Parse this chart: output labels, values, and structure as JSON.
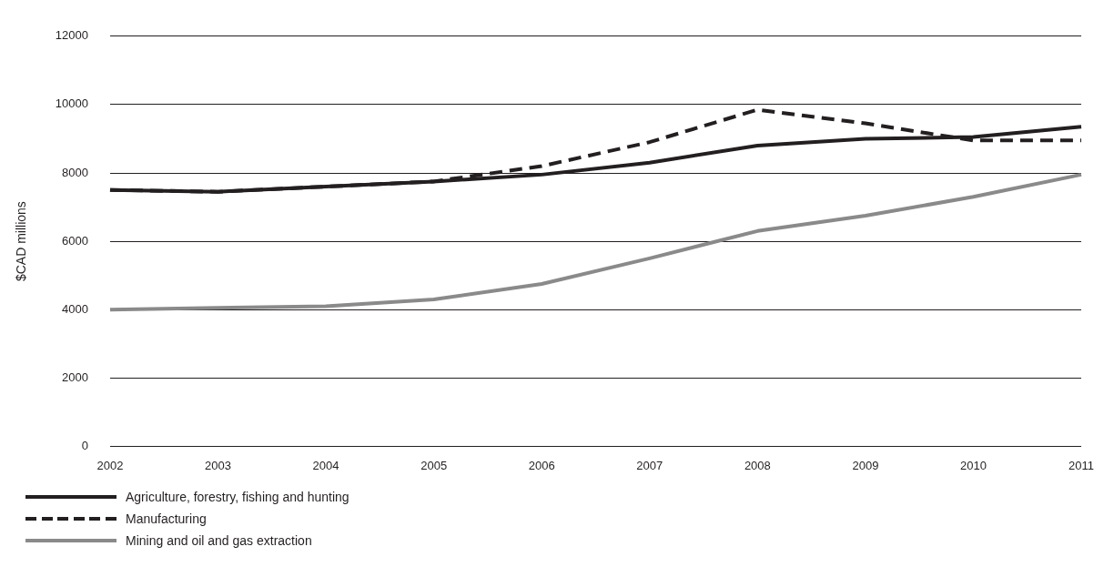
{
  "chart_data": {
    "type": "line",
    "ylabel": "$CAD millions",
    "categories": [
      "2002",
      "2003",
      "2004",
      "2005",
      "2006",
      "2007",
      "2008",
      "2009",
      "2010",
      "2011"
    ],
    "series": [
      {
        "name": "Agriculture, forestry, fishing and hunting",
        "color": "#231f20",
        "values": [
          7500,
          7450,
          7600,
          7750,
          7950,
          8300,
          8800,
          9000,
          9050,
          9350
        ]
      },
      {
        "name": "Manufacturing",
        "color": "#231f20",
        "line_style": "dashed",
        "values": [
          7500,
          7450,
          7600,
          7750,
          8200,
          8900,
          9850,
          9450,
          8950,
          8950
        ]
      },
      {
        "name": "Mining and oil and gas extraction",
        "color": "#8a8a8a",
        "values": [
          4000,
          4050,
          4100,
          4300,
          4750,
          5500,
          6300,
          6750,
          7300,
          7950
        ]
      }
    ],
    "ylim": [
      0,
      12000
    ],
    "yticks": [
      0,
      2000,
      4000,
      6000,
      8000,
      10000,
      12000
    ],
    "grid": "y",
    "legend": "bottom",
    "marker": "none",
    "line_style": "solid"
  }
}
